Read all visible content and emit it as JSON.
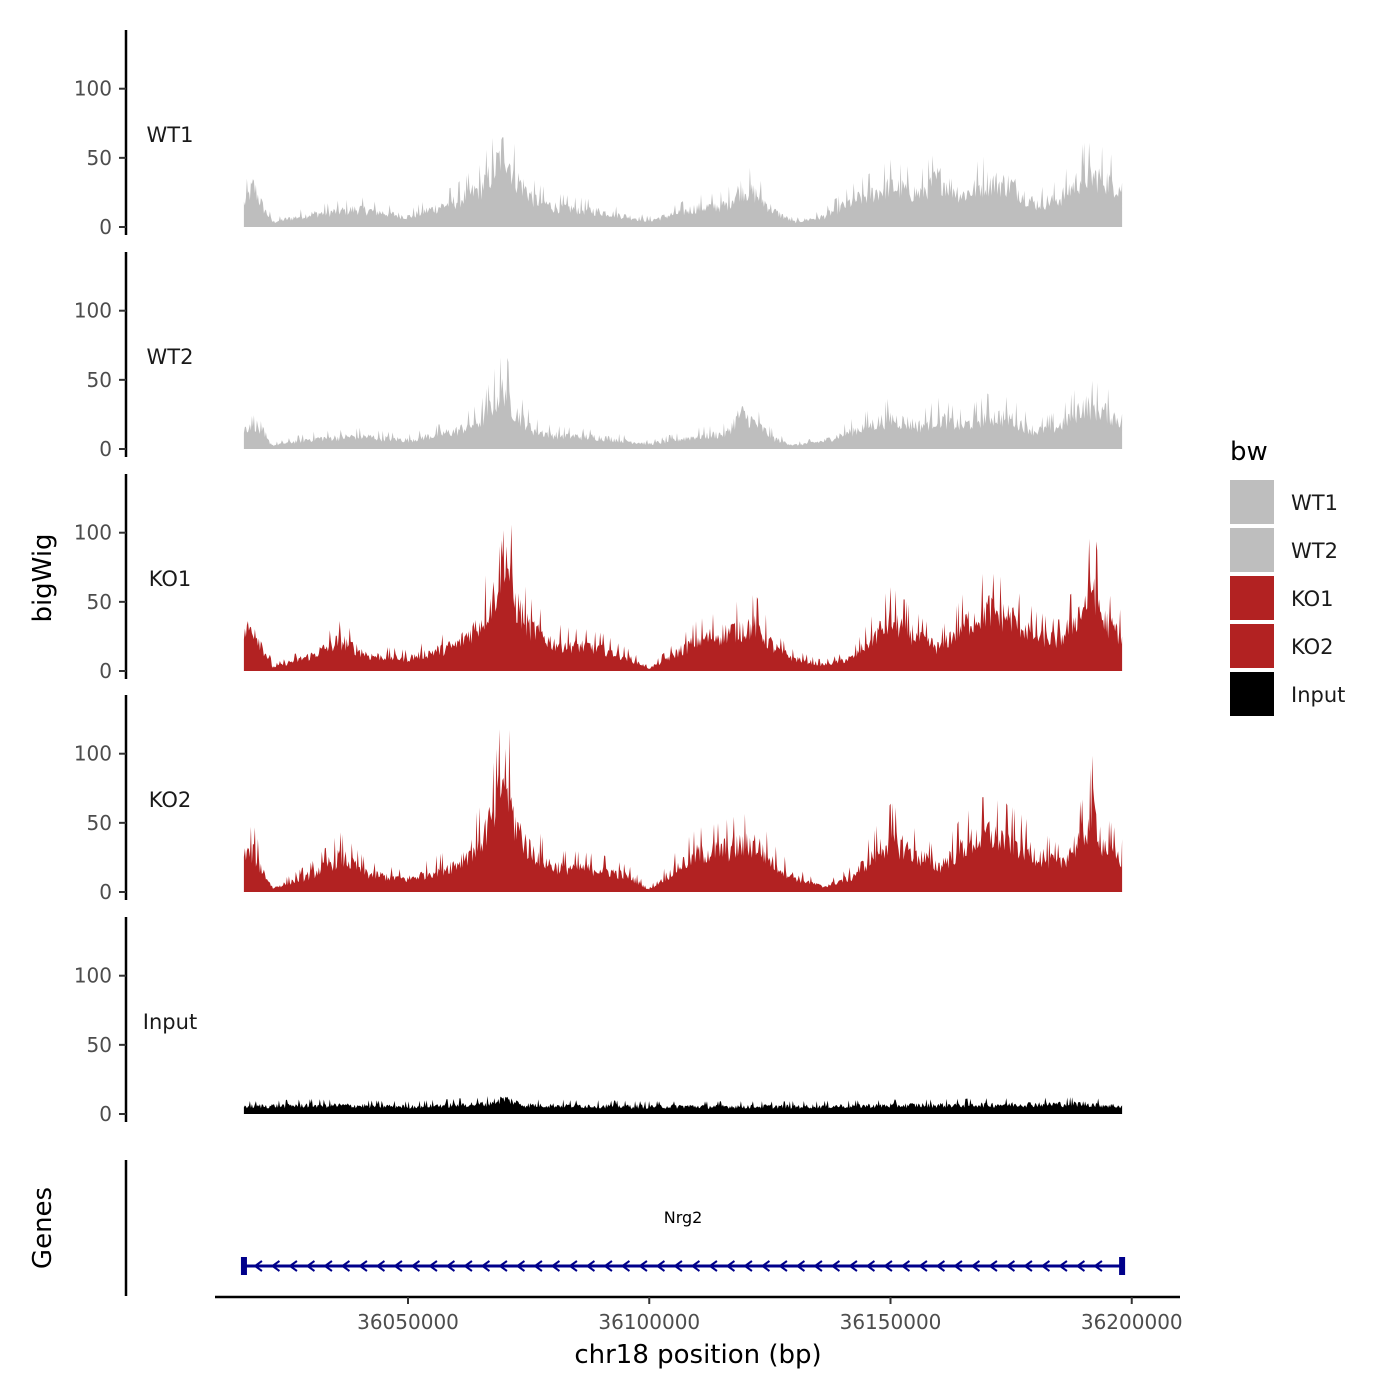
{
  "chart_data": {
    "type": "area",
    "subtype": "genome-coverage-tracks",
    "xlabel": "chr18 position (bp)",
    "ylabel": "bigWig",
    "xlim": [
      36010000,
      36210000
    ],
    "data_range": [
      36016000,
      36198000
    ],
    "x_ticks": [
      36050000,
      36100000,
      36150000,
      36200000
    ],
    "x_tick_labels": [
      "36050000",
      "36100000",
      "36150000",
      "36200000"
    ],
    "ylim": [
      0,
      140
    ],
    "y_ticks": [
      0,
      50,
      100
    ],
    "y_tick_labels": [
      "0",
      "50",
      "100"
    ],
    "legend": {
      "title": "bw",
      "position": "right",
      "entries": [
        {
          "label": "WT1",
          "color": "#bebebe"
        },
        {
          "label": "WT2",
          "color": "#bebebe"
        },
        {
          "label": "KO1",
          "color": "#b22222"
        },
        {
          "label": "KO2",
          "color": "#b22222"
        },
        {
          "label": "Input",
          "color": "#000000"
        }
      ]
    },
    "tracks": [
      {
        "name": "WT1",
        "color": "#bebebe",
        "x": [
          36016000,
          36018000,
          36020000,
          36022000,
          36030000,
          36040000,
          36050000,
          36060000,
          36065000,
          36068000,
          36070000,
          36072000,
          36076000,
          36080000,
          36090000,
          36100000,
          36110000,
          36116000,
          36119000,
          36122000,
          36126000,
          36130000,
          36136000,
          36142000,
          36150000,
          36156000,
          36160000,
          36165000,
          36170000,
          36175000,
          36180000,
          36185000,
          36190000,
          36194000,
          36198000
        ],
        "values": [
          18,
          32,
          15,
          4,
          10,
          14,
          8,
          20,
          30,
          45,
          62,
          40,
          22,
          16,
          12,
          5,
          15,
          17,
          30,
          26,
          12,
          4,
          8,
          20,
          32,
          26,
          38,
          25,
          35,
          33,
          18,
          22,
          40,
          38,
          30
        ]
      },
      {
        "name": "WT2",
        "color": "#bebebe",
        "x": [
          36016000,
          36018000,
          36020000,
          36022000,
          36030000,
          36040000,
          36050000,
          36060000,
          36065000,
          36068000,
          36070000,
          36072000,
          36076000,
          36080000,
          36090000,
          36100000,
          36110000,
          36116000,
          36119000,
          36122000,
          36126000,
          36130000,
          36136000,
          36142000,
          36150000,
          36156000,
          36160000,
          36165000,
          36170000,
          36175000,
          36180000,
          36185000,
          36190000,
          36194000,
          36198000
        ],
        "values": [
          15,
          22,
          10,
          3,
          8,
          10,
          7,
          14,
          22,
          38,
          48,
          30,
          15,
          11,
          9,
          4,
          10,
          12,
          28,
          20,
          8,
          3,
          6,
          14,
          24,
          18,
          24,
          18,
          26,
          24,
          14,
          18,
          34,
          30,
          22
        ]
      },
      {
        "name": "KO1",
        "color": "#b22222",
        "x": [
          36016000,
          36018000,
          36020000,
          36022000,
          36030000,
          36036000,
          36042000,
          36050000,
          36060000,
          36065000,
          36068000,
          36070000,
          36072000,
          36075000,
          36080000,
          36090000,
          36096000,
          36100000,
          36106000,
          36110000,
          36116000,
          36122000,
          36126000,
          36130000,
          36136000,
          36142000,
          36150000,
          36156000,
          36160000,
          36165000,
          36170000,
          36175000,
          36180000,
          36185000,
          36190000,
          36192000,
          36194000,
          36198000
        ],
        "values": [
          30,
          35,
          18,
          3,
          12,
          24,
          12,
          10,
          20,
          38,
          60,
          100,
          55,
          35,
          22,
          18,
          10,
          2,
          15,
          24,
          30,
          36,
          18,
          10,
          5,
          10,
          40,
          26,
          18,
          36,
          48,
          42,
          28,
          24,
          50,
          70,
          40,
          28
        ]
      },
      {
        "name": "KO2",
        "color": "#b22222",
        "x": [
          36016000,
          36018000,
          36020000,
          36022000,
          36030000,
          36036000,
          36042000,
          36050000,
          36060000,
          36065000,
          36068000,
          36070000,
          36072000,
          36075000,
          36080000,
          36090000,
          36096000,
          36100000,
          36106000,
          36110000,
          36116000,
          36122000,
          36126000,
          36130000,
          36136000,
          36142000,
          36150000,
          36156000,
          36160000,
          36165000,
          36170000,
          36175000,
          36180000,
          36185000,
          36190000,
          36192000,
          36194000,
          36198000
        ],
        "values": [
          28,
          32,
          16,
          3,
          14,
          28,
          14,
          10,
          22,
          40,
          62,
          95,
          55,
          34,
          20,
          18,
          12,
          2,
          20,
          30,
          34,
          38,
          22,
          12,
          4,
          12,
          42,
          28,
          20,
          36,
          46,
          40,
          30,
          22,
          45,
          65,
          38,
          25
        ]
      },
      {
        "name": "Input",
        "color": "#000000",
        "x": [
          36016000,
          36030000,
          36050000,
          36066000,
          36070000,
          36074000,
          36100000,
          36130000,
          36160000,
          36190000,
          36198000
        ],
        "values": [
          6,
          7,
          6,
          8,
          12,
          7,
          6,
          6,
          7,
          8,
          6
        ]
      }
    ],
    "genes": {
      "track_title": "Genes",
      "items": [
        {
          "name": "Nrg2",
          "start": 36016000,
          "end": 36198000,
          "strand": "-",
          "color": "#00008b"
        }
      ]
    }
  }
}
